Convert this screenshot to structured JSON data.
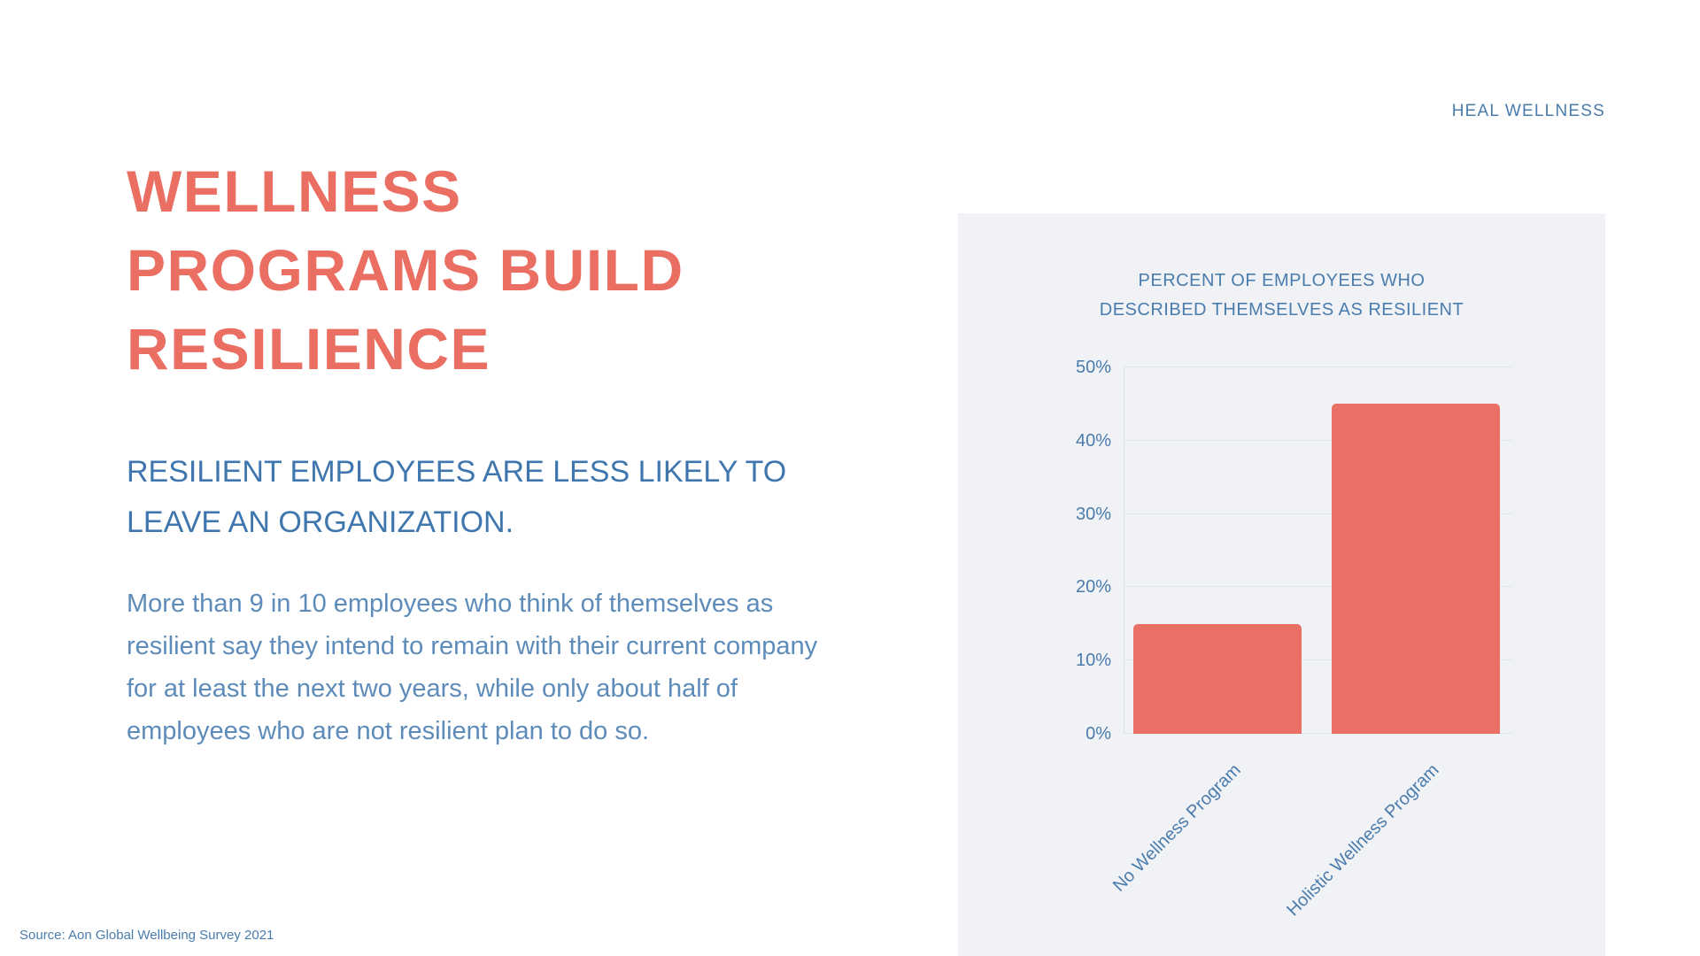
{
  "brand": "HEAL WELLNESS",
  "slide": {
    "title_lines": [
      "WELLNESS",
      "PROGRAMS BUILD",
      "RESILIENCE"
    ],
    "subtitle": "RESILIENT EMPLOYEES ARE LESS LIKELY TO LEAVE AN ORGANIZATION.",
    "body": "More than 9 in 10 employees who think of themselves as resilient say they intend to remain with their current company for at least the next two years, while only about half of employees who are not resilient plan to do so.",
    "source": "Source: Aon Global Wellbeing Survey 2021"
  },
  "colors": {
    "accent_coral": "#EB6E62",
    "blue_text": "#4A7CAD",
    "panel_bg": "#F0F2F6",
    "bar": "#EA7065",
    "gridline": "#E2E5EB"
  },
  "chart_data": {
    "type": "bar",
    "title": "PERCENT OF EMPLOYEES WHO DESCRIBED THEMSELVES AS RESILIENT",
    "title_lines": [
      "PERCENT OF EMPLOYEES WHO",
      "DESCRIBED THEMSELVES AS RESILIENT"
    ],
    "categories": [
      "No Wellness Program",
      "Holistic Wellness Program"
    ],
    "values": [
      15,
      45
    ],
    "unit": "%",
    "xlabel": "",
    "ylabel": "",
    "ylim": [
      0,
      50
    ],
    "ytick_values": [
      50,
      40,
      30,
      20,
      10,
      0
    ],
    "ytick_labels": [
      "50%",
      "40%",
      "30%",
      "20%",
      "10%",
      "0%"
    ],
    "grid": true,
    "legend": "none"
  }
}
